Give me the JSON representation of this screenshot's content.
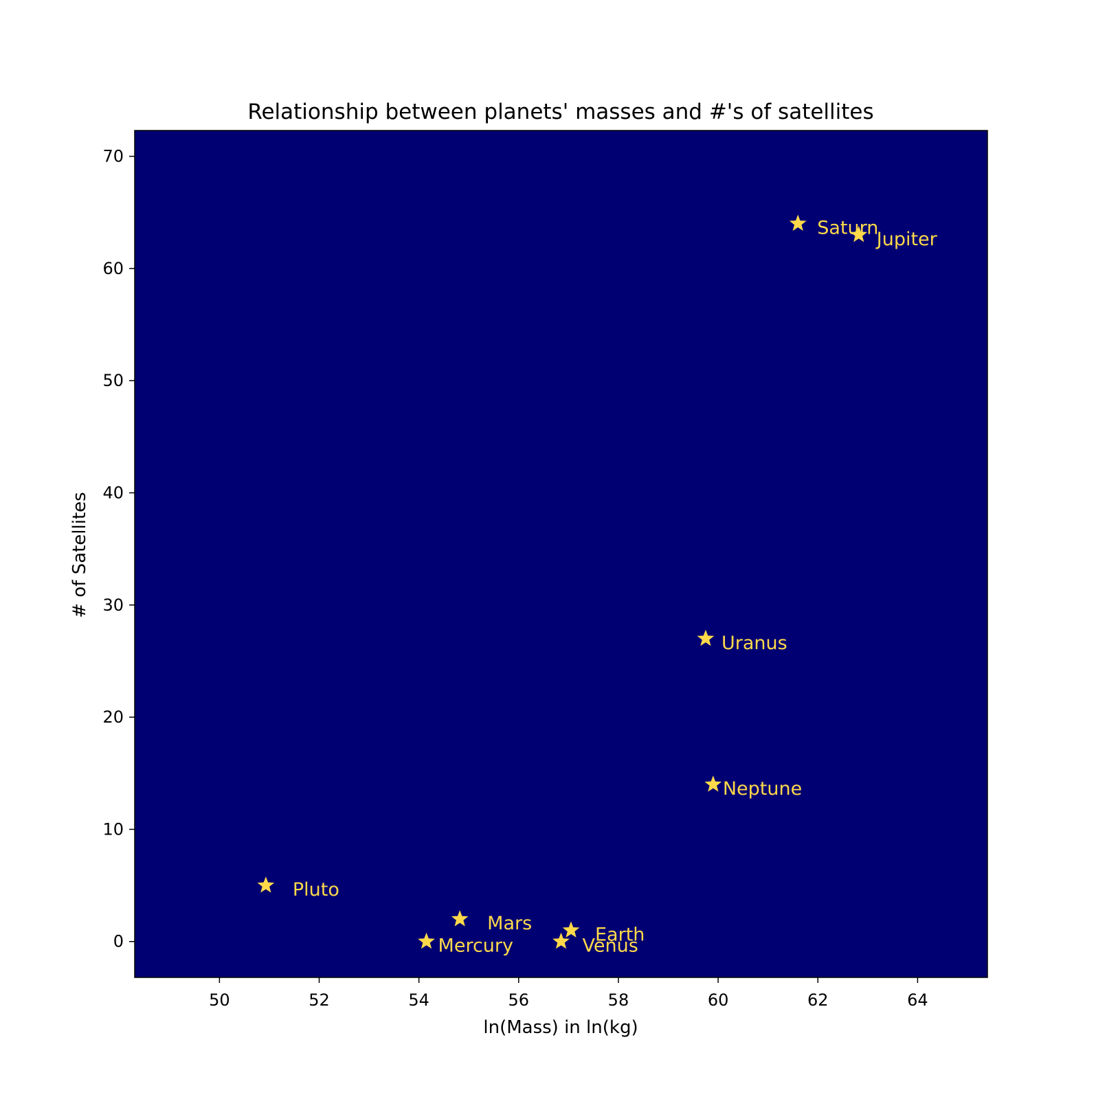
{
  "chart_data": {
    "type": "scatter",
    "title": "Relationship between planets' masses and #'s of satellites",
    "xlabel": "ln(Mass) in ln(kg)",
    "ylabel": "# of Satellites",
    "xlim": [
      48.3,
      65.4
    ],
    "ylim": [
      -3.2,
      72.3
    ],
    "xticks": [
      50,
      52,
      54,
      56,
      58,
      60,
      62,
      64
    ],
    "yticks": [
      0,
      10,
      20,
      30,
      40,
      50,
      60,
      70
    ],
    "grid": false,
    "legend": "none",
    "marker": "star",
    "colors": {
      "plot_background": "#000072",
      "marker": "#ffd94a",
      "label": "#ffd94a"
    },
    "points": [
      {
        "label": "Mercury",
        "x": 54.15,
        "y": 0
      },
      {
        "label": "Venus",
        "x": 56.85,
        "y": 0
      },
      {
        "label": "Earth",
        "x": 57.05,
        "y": 1
      },
      {
        "label": "Mars",
        "x": 54.82,
        "y": 2
      },
      {
        "label": "Jupiter",
        "x": 62.82,
        "y": 63
      },
      {
        "label": "Saturn",
        "x": 61.6,
        "y": 64
      },
      {
        "label": "Uranus",
        "x": 59.75,
        "y": 27
      },
      {
        "label": "Neptune",
        "x": 59.9,
        "y": 14
      },
      {
        "label": "Pluto",
        "x": 50.93,
        "y": 5
      }
    ]
  }
}
